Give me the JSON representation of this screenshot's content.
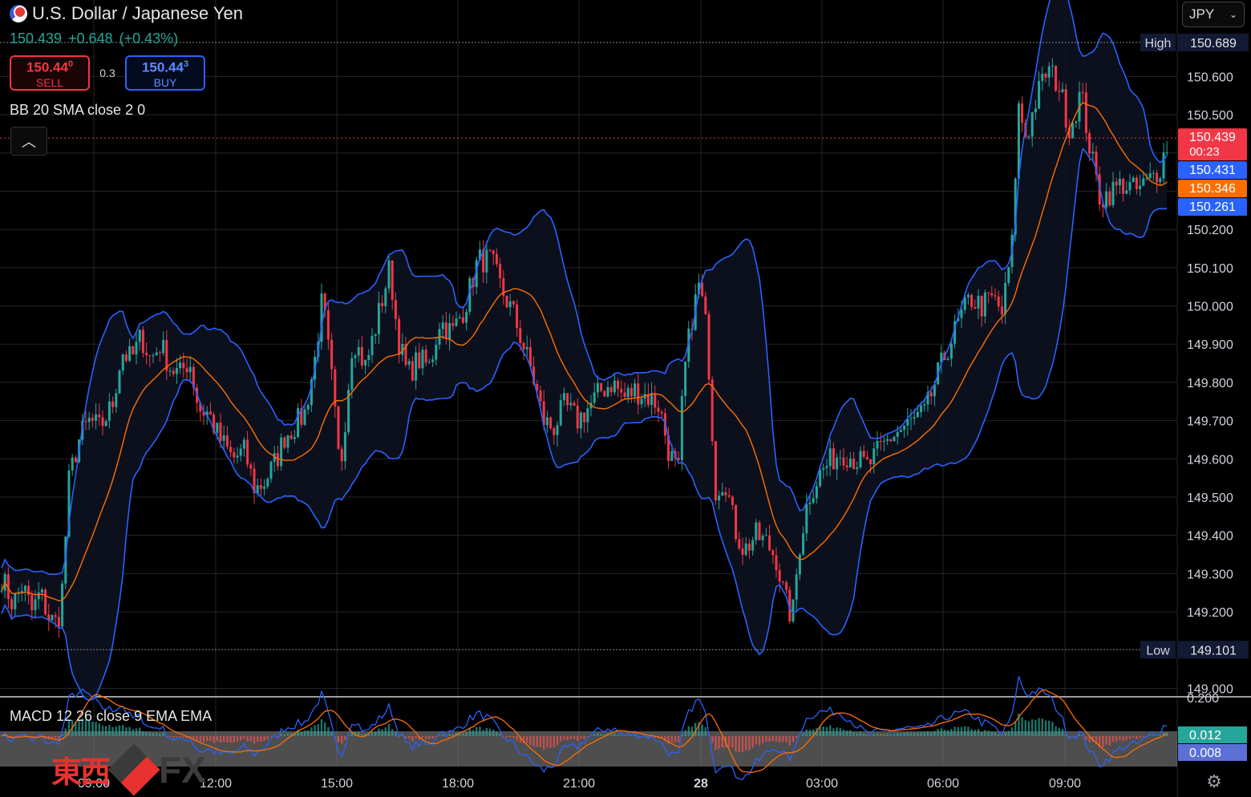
{
  "header": {
    "title": "U.S. Dollar / Japanese Yen",
    "last": "150.439",
    "change": "+0.648",
    "change_pct": "(+0.43%)",
    "sell_price": "150.44",
    "sell_price_sup": "0",
    "sell_label": "SELL",
    "buy_price": "150.44",
    "buy_price_sup": "3",
    "buy_label": "BUY",
    "spread": "0.3",
    "indicator_bb": "BB 20 SMA close 2 0",
    "collapse_icon": "chevron-up-icon"
  },
  "currency_select": {
    "value": "JPY",
    "icon": "chevron-down-icon"
  },
  "macd_label": "MACD 12 26 close 9 EMA EMA",
  "watermark": {
    "kanji": "東西",
    "fx": "FX"
  },
  "settings_icon": "gear-icon",
  "colors": {
    "up": "#26a69a",
    "down": "#f23645",
    "bb_band": "#2962ff",
    "bb_basis": "#ff6d00",
    "macd": "#2962ff",
    "signal": "#ff6d00"
  },
  "chart_data": {
    "type": "candlestick",
    "y_range": [
      148.98,
      150.8
    ],
    "y_ticks": [
      "150.600",
      "150.500",
      "150.400",
      "150.300",
      "150.200",
      "150.100",
      "150.000",
      "149.900",
      "149.800",
      "149.700",
      "149.600",
      "149.500",
      "149.400",
      "149.300",
      "149.200",
      "149.000"
    ],
    "x_ticks": [
      "09:00",
      "12:00",
      "15:00",
      "18:00",
      "21:00",
      "28",
      "03:00",
      "06:00",
      "09:00"
    ],
    "high": {
      "label": "High",
      "value": "150.689"
    },
    "low": {
      "label": "Low",
      "value": "149.101"
    },
    "price_tags": [
      {
        "value": "150.439",
        "sub": "00:23",
        "color": "#f23645"
      },
      {
        "value": "150.431",
        "color": "#2962ff"
      },
      {
        "value": "150.346",
        "color": "#ff6d00"
      },
      {
        "value": "150.261",
        "color": "#2962ff"
      }
    ],
    "close_path": [
      [
        0,
        149.3
      ],
      [
        16,
        149.22
      ],
      [
        28,
        149.27
      ],
      [
        40,
        149.2
      ],
      [
        50,
        149.25
      ],
      [
        62,
        149.18
      ],
      [
        72,
        149.17
      ],
      [
        80,
        149.3
      ],
      [
        84,
        149.52
      ],
      [
        92,
        149.6
      ],
      [
        100,
        149.66
      ],
      [
        112,
        149.7
      ],
      [
        124,
        149.68
      ],
      [
        140,
        149.74
      ],
      [
        152,
        149.88
      ],
      [
        164,
        149.86
      ],
      [
        176,
        149.92
      ],
      [
        188,
        149.86
      ],
      [
        200,
        149.9
      ],
      [
        212,
        149.84
      ],
      [
        224,
        149.82
      ],
      [
        236,
        149.86
      ],
      [
        248,
        149.73
      ],
      [
        260,
        149.72
      ],
      [
        272,
        149.66
      ],
      [
        290,
        149.6
      ],
      [
        305,
        149.62
      ],
      [
        318,
        149.52
      ],
      [
        330,
        149.54
      ],
      [
        345,
        149.6
      ],
      [
        355,
        149.66
      ],
      [
        365,
        149.68
      ],
      [
        380,
        149.72
      ],
      [
        392,
        149.85
      ],
      [
        402,
        150.02
      ],
      [
        414,
        149.8
      ],
      [
        424,
        149.56
      ],
      [
        440,
        149.92
      ],
      [
        456,
        149.84
      ],
      [
        470,
        149.96
      ],
      [
        486,
        150.1
      ],
      [
        496,
        149.92
      ],
      [
        508,
        149.82
      ],
      [
        522,
        149.86
      ],
      [
        536,
        149.84
      ],
      [
        548,
        149.96
      ],
      [
        564,
        149.93
      ],
      [
        580,
        150.0
      ],
      [
        596,
        150.12
      ],
      [
        612,
        150.12
      ],
      [
        626,
        150.04
      ],
      [
        640,
        149.98
      ],
      [
        652,
        149.9
      ],
      [
        664,
        149.82
      ],
      [
        678,
        149.7
      ],
      [
        690,
        149.68
      ],
      [
        704,
        149.74
      ],
      [
        720,
        149.7
      ],
      [
        736,
        149.74
      ],
      [
        750,
        149.78
      ],
      [
        764,
        149.8
      ],
      [
        778,
        149.76
      ],
      [
        792,
        149.78
      ],
      [
        810,
        149.76
      ],
      [
        822,
        149.74
      ],
      [
        834,
        149.62
      ],
      [
        846,
        149.56
      ],
      [
        852,
        149.8
      ],
      [
        862,
        149.96
      ],
      [
        872,
        150.06
      ],
      [
        882,
        149.92
      ],
      [
        892,
        149.52
      ],
      [
        904,
        149.55
      ],
      [
        916,
        149.42
      ],
      [
        928,
        149.36
      ],
      [
        942,
        149.4
      ],
      [
        956,
        149.38
      ],
      [
        968,
        149.34
      ],
      [
        978,
        149.24
      ],
      [
        988,
        149.18
      ],
      [
        996,
        149.36
      ],
      [
        1008,
        149.5
      ],
      [
        1022,
        149.56
      ],
      [
        1038,
        149.6
      ],
      [
        1050,
        149.62
      ],
      [
        1066,
        149.6
      ],
      [
        1082,
        149.58
      ],
      [
        1096,
        149.62
      ],
      [
        1112,
        149.66
      ],
      [
        1126,
        149.68
      ],
      [
        1140,
        149.7
      ],
      [
        1154,
        149.72
      ],
      [
        1166,
        149.8
      ],
      [
        1180,
        149.88
      ],
      [
        1196,
        149.96
      ],
      [
        1210,
        150.02
      ],
      [
        1224,
        150.0
      ],
      [
        1238,
        150.02
      ],
      [
        1250,
        149.98
      ],
      [
        1262,
        150.16
      ],
      [
        1270,
        150.52
      ],
      [
        1280,
        150.44
      ],
      [
        1292,
        150.54
      ],
      [
        1306,
        150.62
      ],
      [
        1320,
        150.58
      ],
      [
        1334,
        150.46
      ],
      [
        1348,
        150.56
      ],
      [
        1360,
        150.4
      ],
      [
        1372,
        150.28
      ],
      [
        1386,
        150.3
      ],
      [
        1400,
        150.32
      ],
      [
        1416,
        150.3
      ],
      [
        1430,
        150.32
      ],
      [
        1446,
        150.36
      ],
      [
        1458,
        150.44
      ]
    ],
    "macd": {
      "y_range": [
        -0.03,
        0.03
      ],
      "y_tick": "0.200",
      "macd_tag": "0.012",
      "signal_tag": "0.008"
    }
  }
}
